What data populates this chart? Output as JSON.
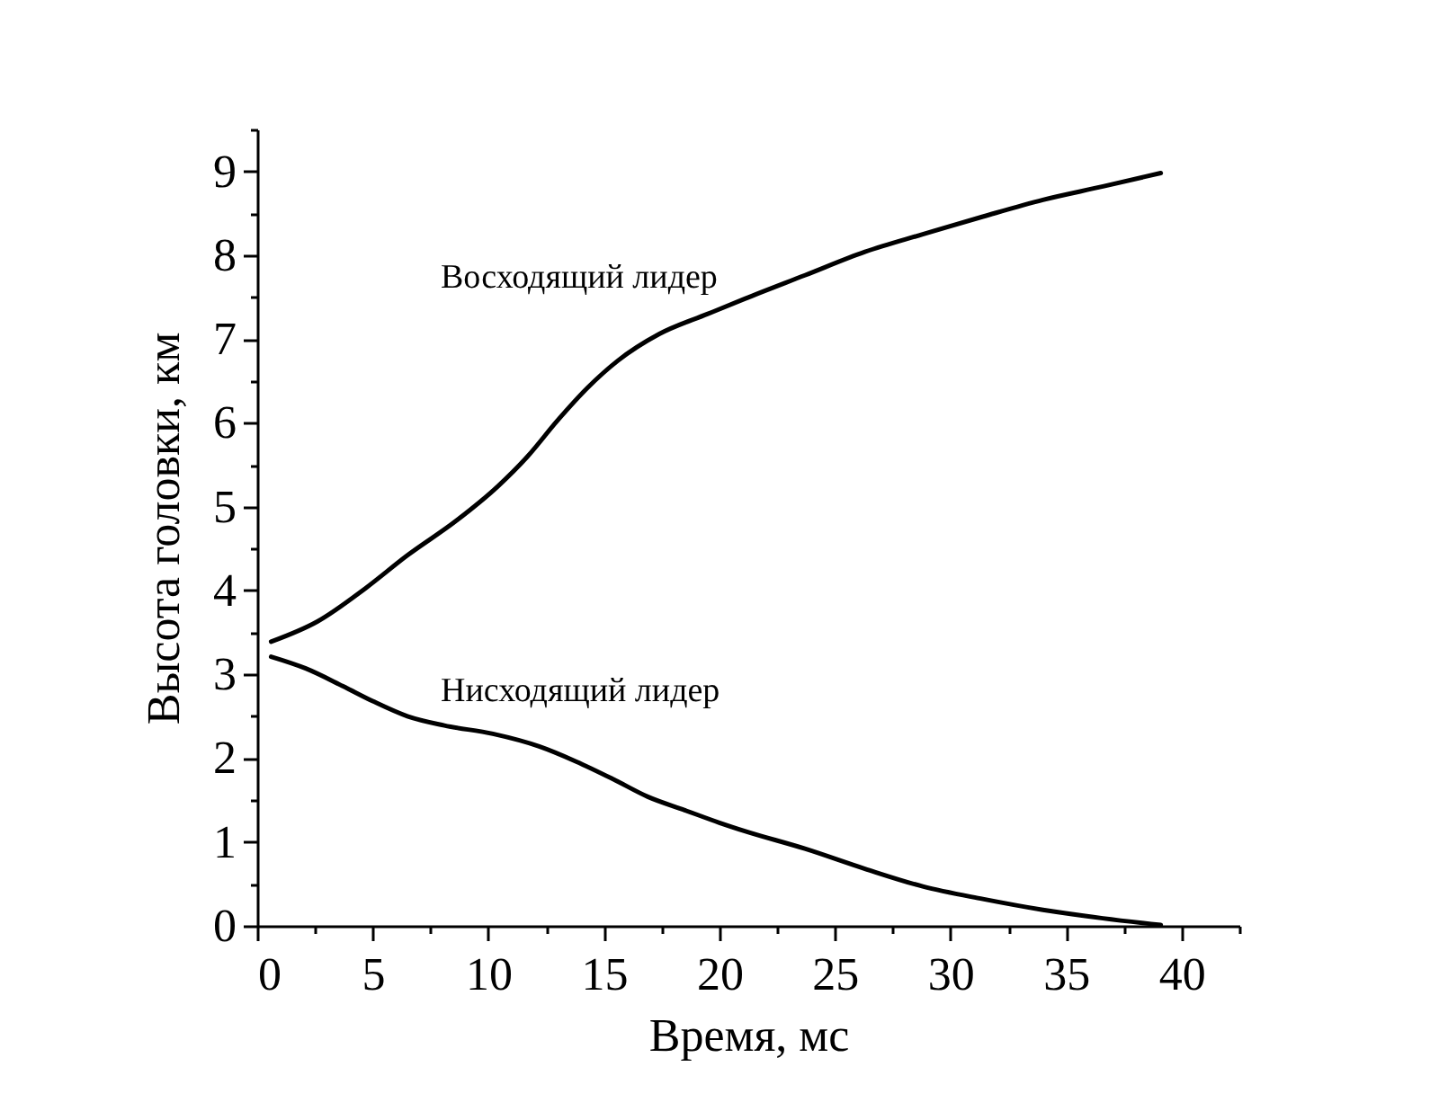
{
  "chart_data": {
    "type": "line",
    "xlabel": "Время, мс",
    "ylabel": "Высота головки, км",
    "xlim": [
      0,
      42.5
    ],
    "ylim": [
      0,
      9.5
    ],
    "xticks": [
      0,
      {
        "value": 2.5,
        "label": null
      },
      5,
      {
        "value": 7.5,
        "label": null
      },
      10,
      {
        "value": 12.5,
        "label": null
      },
      15,
      {
        "value": 17.5,
        "label": null
      },
      20,
      {
        "value": 22.5,
        "label": null
      },
      25,
      {
        "value": 27.5,
        "label": null
      },
      30,
      {
        "value": 32.5,
        "label": null
      },
      35,
      {
        "value": 37.5,
        "label": null
      },
      40,
      {
        "value": 42.5,
        "label": null
      }
    ],
    "yticks": [
      0,
      {
        "value": 0.5,
        "label": null
      },
      1,
      {
        "value": 1.5,
        "label": null
      },
      2,
      {
        "value": 2.5,
        "label": null
      },
      3,
      {
        "value": 3.5,
        "label": null
      },
      4,
      {
        "value": 4.5,
        "label": null
      },
      5,
      {
        "value": 5.5,
        "label": null
      },
      6,
      {
        "value": 6.5,
        "label": null
      },
      7,
      {
        "value": 7.5,
        "label": null
      },
      8,
      {
        "value": 8.5,
        "label": null
      },
      9,
      {
        "value": 9.5,
        "label": null
      }
    ],
    "series": [
      {
        "name": "Восходящий лидер",
        "color": "#000000",
        "line_style": "solid",
        "x": [
          0.6,
          2.6,
          4.7,
          6.5,
          8.6,
          10.4,
          11.7,
          13.0,
          14.3,
          15.6,
          17.4,
          19.5,
          21.1,
          23.7,
          26.3,
          28.8,
          31.4,
          34.0,
          36.6,
          39.1
        ],
        "values": [
          3.39,
          3.63,
          4.03,
          4.42,
          4.83,
          5.24,
          5.6,
          6.03,
          6.42,
          6.74,
          7.06,
          7.3,
          7.48,
          7.76,
          8.04,
          8.25,
          8.46,
          8.66,
          8.82,
          8.98
        ]
      },
      {
        "name": "Нисходящий лидер",
        "color": "#000000",
        "line_style": "solid",
        "x": [
          0.6,
          2.1,
          3.7,
          5.0,
          6.5,
          8.1,
          10.2,
          12.2,
          13.8,
          15.4,
          16.9,
          18.5,
          20.0,
          21.1,
          23.7,
          26.3,
          28.8,
          31.4,
          34.0,
          36.6,
          39.1
        ],
        "values": [
          3.21,
          3.07,
          2.86,
          2.68,
          2.5,
          2.39,
          2.29,
          2.14,
          1.96,
          1.75,
          1.54,
          1.38,
          1.23,
          1.13,
          0.92,
          0.68,
          0.47,
          0.32,
          0.19,
          0.09,
          0.01
        ]
      }
    ]
  }
}
